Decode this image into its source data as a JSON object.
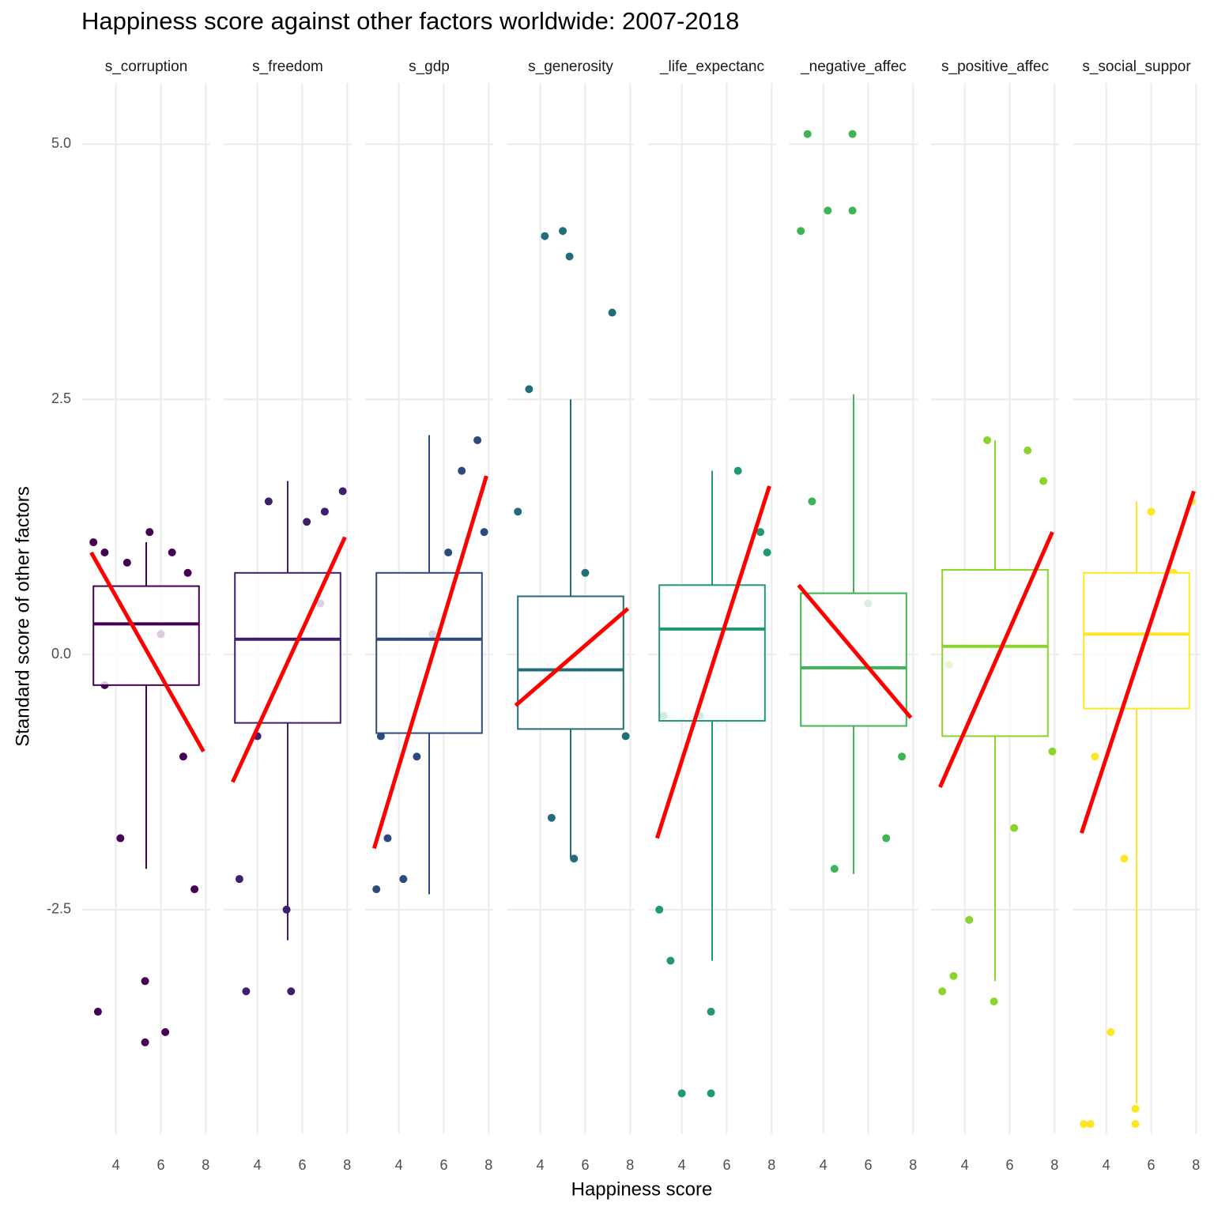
{
  "chart_data": {
    "type": "scatter",
    "title": "Happiness score against other factors worldwide: 2007-2018",
    "x_label": "Happiness score",
    "y_label": "Standard score of other factors",
    "xlim": [
      2.5,
      8.2
    ],
    "xticks": [
      4,
      6,
      8
    ],
    "ylim": [
      -4.7,
      5.6
    ],
    "yticks": [
      {
        "value": 5,
        "label": "5.0"
      },
      {
        "value": 2.5,
        "label": "2.5"
      },
      {
        "value": 0,
        "label": "0.0"
      },
      {
        "value": -2.5,
        "label": "-2.5"
      }
    ],
    "grid": true,
    "fit_color": "#ff0000",
    "facets": [
      {
        "name": "s_corruption",
        "color": "#440154",
        "x": [
          3.0,
          3.5,
          4.5,
          5.5,
          6.5,
          7.2,
          3.5,
          5.3,
          5.3,
          6.2,
          7.5,
          3.2,
          4.2,
          7.0,
          6.0
        ],
        "y": [
          1.1,
          1.0,
          0.9,
          1.2,
          1.0,
          0.8,
          -0.3,
          -3.2,
          -3.8,
          -3.7,
          -2.3,
          -3.5,
          -1.8,
          -1.0,
          0.2
        ],
        "box": {
          "whisker_low": -2.1,
          "q1": -0.3,
          "median": 0.3,
          "q3": 0.67,
          "whisker_high": 1.1
        },
        "box_xlim": [
          3.0,
          7.7
        ],
        "fit": {
          "x": [
            2.9,
            7.9
          ],
          "y": [
            1.0,
            -0.95
          ]
        }
      },
      {
        "name": "s_freedom",
        "color": "#3e1f6d",
        "x": [
          3.2,
          3.5,
          4.5,
          5.3,
          5.5,
          6.2,
          7.0,
          7.8,
          4.0,
          6.8
        ],
        "y": [
          -2.2,
          -3.3,
          1.5,
          -2.5,
          -3.3,
          1.3,
          1.4,
          1.6,
          -0.8,
          0.5
        ],
        "box": {
          "whisker_low": -2.8,
          "q1": -0.67,
          "median": 0.15,
          "q3": 0.8,
          "whisker_high": 1.7
        },
        "box_xlim": [
          3.0,
          7.7
        ],
        "fit": {
          "x": [
            2.9,
            7.9
          ],
          "y": [
            -1.25,
            1.15
          ]
        }
      },
      {
        "name": "s_gdp",
        "color": "#2c4a7d",
        "x": [
          3.0,
          3.5,
          4.2,
          4.8,
          5.5,
          6.2,
          6.8,
          7.5,
          7.8,
          3.2
        ],
        "y": [
          -2.3,
          -1.8,
          -2.2,
          -1.0,
          0.2,
          1.0,
          1.8,
          2.1,
          1.2,
          -0.8
        ],
        "box": {
          "whisker_low": -2.35,
          "q1": -0.77,
          "median": 0.15,
          "q3": 0.8,
          "whisker_high": 2.15
        },
        "box_xlim": [
          3.0,
          7.7
        ],
        "fit": {
          "x": [
            2.9,
            7.9
          ],
          "y": [
            -1.9,
            1.75
          ]
        }
      },
      {
        "name": "s_generosity",
        "color": "#226d79",
        "x": [
          3.0,
          3.5,
          4.2,
          5.0,
          5.3,
          5.5,
          6.0,
          7.2,
          4.5,
          7.8
        ],
        "y": [
          1.4,
          2.6,
          4.1,
          4.15,
          3.9,
          -2.0,
          0.8,
          3.35,
          -1.6,
          -0.8
        ],
        "box": {
          "whisker_low": -2.0,
          "q1": -0.73,
          "median": -0.15,
          "q3": 0.57,
          "whisker_high": 2.5
        },
        "box_xlim": [
          3.0,
          7.7
        ],
        "fit": {
          "x": [
            2.9,
            7.9
          ],
          "y": [
            -0.5,
            0.45
          ]
        }
      },
      {
        "name": "_life_expectanc",
        "color": "#1f9873",
        "x": [
          3.0,
          3.5,
          4.0,
          5.3,
          5.3,
          6.5,
          7.5,
          4.8,
          3.2,
          7.8
        ],
        "y": [
          -2.5,
          -3.0,
          -4.3,
          -4.3,
          -3.5,
          1.8,
          1.2,
          -0.6,
          -0.6,
          1.0
        ],
        "box": {
          "whisker_low": -3.0,
          "q1": -0.65,
          "median": 0.25,
          "q3": 0.68,
          "whisker_high": 1.8
        },
        "box_xlim": [
          3.0,
          7.7
        ],
        "fit": {
          "x": [
            2.9,
            7.9
          ],
          "y": [
            -1.8,
            1.65
          ]
        }
      },
      {
        "name": "_negative_affec",
        "color": "#3db555",
        "x": [
          3.0,
          3.3,
          4.2,
          5.3,
          5.3,
          4.5,
          6.8,
          7.5,
          3.5,
          6.0
        ],
        "y": [
          4.15,
          5.1,
          4.35,
          5.1,
          4.35,
          -2.1,
          -1.8,
          -1.0,
          1.5,
          0.5
        ],
        "box": {
          "whisker_low": -2.15,
          "q1": -0.7,
          "median": -0.13,
          "q3": 0.6,
          "whisker_high": 2.55
        },
        "box_xlim": [
          3.0,
          7.7
        ],
        "fit": {
          "x": [
            2.9,
            7.9
          ],
          "y": [
            0.68,
            -0.62
          ]
        }
      },
      {
        "name": "s_positive_affec",
        "color": "#8ad52a",
        "x": [
          3.0,
          3.5,
          4.2,
          5.3,
          6.2,
          6.8,
          5.0,
          7.5,
          3.3,
          7.9
        ],
        "y": [
          -3.3,
          -3.15,
          -2.6,
          -3.4,
          -1.7,
          2.0,
          2.1,
          1.7,
          -0.1,
          -0.95
        ],
        "box": {
          "whisker_low": -3.2,
          "q1": -0.8,
          "median": 0.08,
          "q3": 0.83,
          "whisker_high": 2.1
        },
        "box_xlim": [
          3.0,
          7.7
        ],
        "fit": {
          "x": [
            2.9,
            7.9
          ],
          "y": [
            -1.3,
            1.2
          ]
        }
      },
      {
        "name": "s_social_suppor",
        "color": "#fde725",
        "x": [
          3.0,
          3.3,
          4.2,
          5.3,
          5.3,
          6.0,
          7.8,
          3.5,
          4.8,
          7.0
        ],
        "y": [
          -4.6,
          -4.6,
          -3.7,
          -4.45,
          -4.6,
          1.4,
          1.5,
          -1.0,
          -2.0,
          0.8
        ],
        "box": {
          "whisker_low": -4.4,
          "q1": -0.53,
          "median": 0.2,
          "q3": 0.8,
          "whisker_high": 1.5
        },
        "box_xlim": [
          3.0,
          7.7
        ],
        "fit": {
          "x": [
            2.9,
            7.9
          ],
          "y": [
            -1.75,
            1.6
          ]
        }
      }
    ]
  }
}
